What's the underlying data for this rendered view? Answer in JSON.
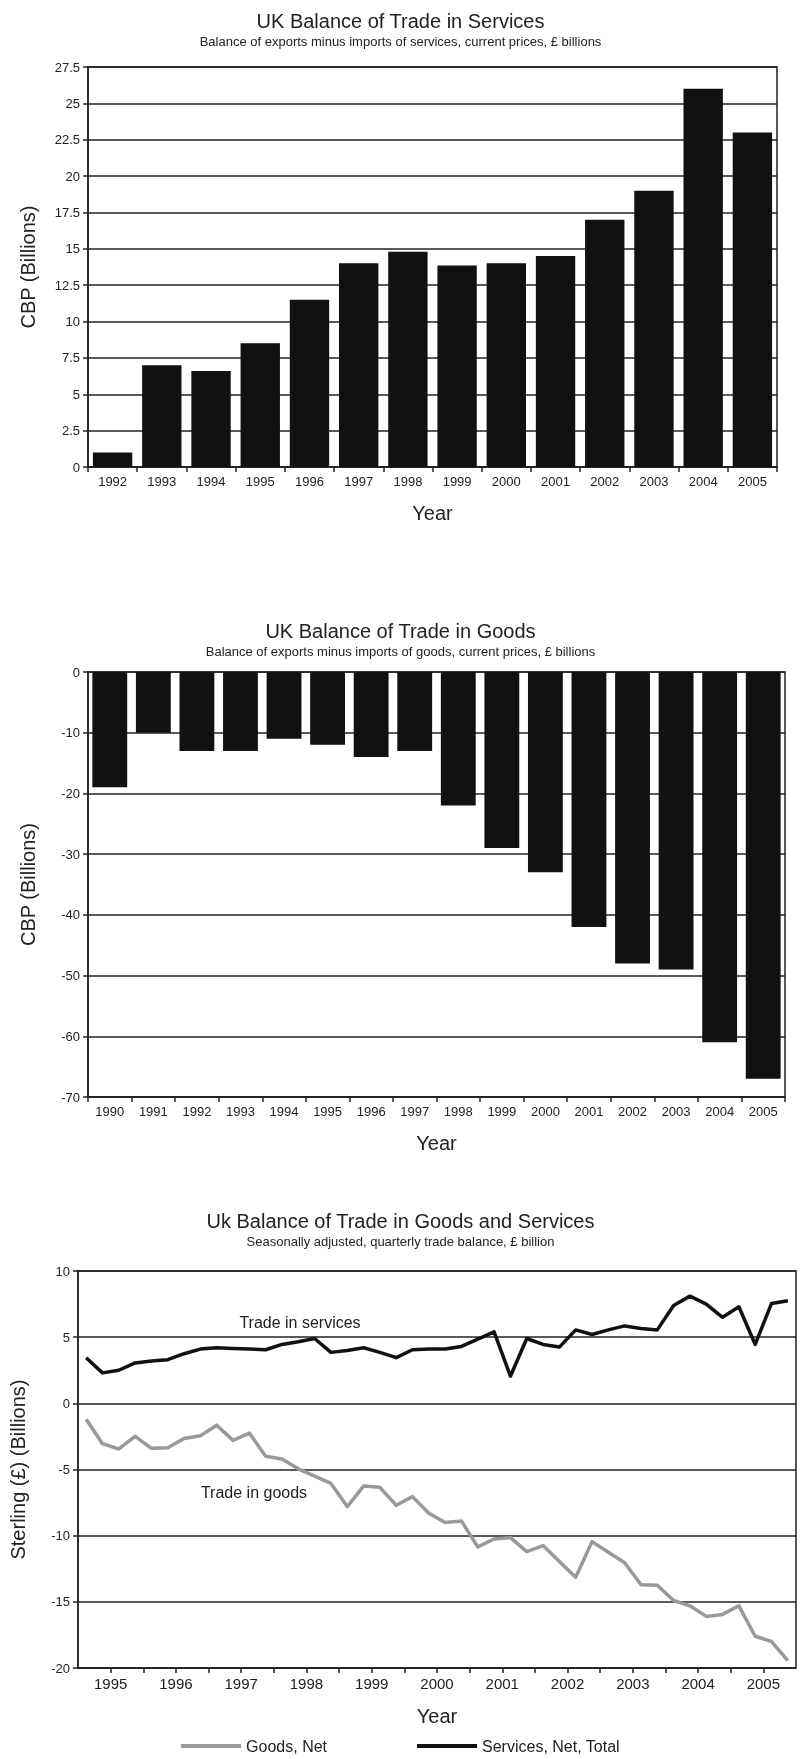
{
  "chart_data": [
    {
      "type": "bar",
      "title": "UK Balance of Trade in Services",
      "subtitle": "Balance of exports minus imports of services, current prices, £ billions",
      "xlabel": "Year",
      "ylabel": "CBP (Billions)",
      "categories": [
        "1992",
        "1993",
        "1994",
        "1995",
        "1996",
        "1997",
        "1998",
        "1999",
        "2000",
        "2001",
        "2002",
        "2003",
        "2004",
        "2005"
      ],
      "values": [
        1,
        7,
        6.6,
        8.5,
        11.5,
        14,
        14.8,
        13.85,
        14,
        14.5,
        17,
        19,
        26,
        23
      ],
      "color": "#111111",
      "ylim": [
        0,
        27.5
      ],
      "yticks": [
        0,
        2.5,
        5,
        7.5,
        10,
        12.5,
        15,
        17.5,
        20,
        22.5,
        25,
        27.5
      ],
      "grid": "y"
    },
    {
      "type": "bar",
      "title": "UK Balance of Trade in Goods",
      "subtitle": "Balance of exports minus imports of goods, current prices, £ billions",
      "xlabel": "Year",
      "ylabel": "CBP (Billions)",
      "categories": [
        "1990",
        "1991",
        "1992",
        "1993",
        "1994",
        "1995",
        "1996",
        "1997",
        "1998",
        "1999",
        "2000",
        "2001",
        "2002",
        "2003",
        "2004",
        "2005"
      ],
      "values": [
        -19,
        -10,
        -13,
        -13,
        -11,
        -12,
        -14,
        -13,
        -22,
        -29,
        -33,
        -42,
        -48,
        -49,
        -61,
        -67
      ],
      "color": "#111111",
      "ylim": [
        -70,
        0
      ],
      "yticks": [
        -70,
        -60,
        -50,
        -40,
        -30,
        -20,
        -10,
        0
      ],
      "grid": "y"
    },
    {
      "type": "line",
      "title": "Uk Balance of Trade in Goods and Services",
      "subtitle": "Seasonally adjusted, quarterly trade balance, £ billion",
      "xlabel": "Year",
      "ylabel": "Sterling (£) (Billions)",
      "x": [
        1995.125,
        1995.375,
        1995.625,
        1995.875,
        1996.125,
        1996.375,
        1996.625,
        1996.875,
        1997.125,
        1997.375,
        1997.625,
        1997.875,
        1998.125,
        1998.375,
        1998.625,
        1998.875,
        1999.125,
        1999.375,
        1999.625,
        1999.875,
        2000.125,
        2000.375,
        2000.625,
        2000.875,
        2001.125,
        2001.375,
        2001.625,
        2001.875,
        2002.125,
        2002.375,
        2002.625,
        2002.875,
        2003.125,
        2003.375,
        2003.625,
        2003.875,
        2004.125,
        2004.375,
        2004.625,
        2004.875,
        2005.125,
        2005.375,
        2005.625,
        2005.875
      ],
      "series": [
        {
          "name": "Goods, Net",
          "color": "#999999",
          "values": [
            -1.2,
            -3.05,
            -3.45,
            -2.5,
            -3.4,
            -3.35,
            -2.65,
            -2.45,
            -1.65,
            -2.8,
            -2.25,
            -4.0,
            -4.2,
            -4.95,
            -5.5,
            -6.05,
            -7.8,
            -6.25,
            -6.35,
            -7.7,
            -7.05,
            -8.3,
            -9.0,
            -8.9,
            -10.85,
            -10.25,
            -10.15,
            -11.2,
            -10.75,
            -11.95,
            -13.15,
            -10.45,
            -11.25,
            -12.05,
            -13.7,
            -13.75,
            -14.9,
            -15.3,
            -16.1,
            -15.95,
            -15.3,
            -17.6,
            -18.0,
            -19.45
          ]
        },
        {
          "name": "Services, Net, Total",
          "color": "#111111",
          "values": [
            3.45,
            2.3,
            2.5,
            3.05,
            3.2,
            3.3,
            3.75,
            4.1,
            4.2,
            4.15,
            4.1,
            4.05,
            4.45,
            4.65,
            4.9,
            3.85,
            4.0,
            4.2,
            3.85,
            3.45,
            4.05,
            4.1,
            4.1,
            4.3,
            4.85,
            5.4,
            2.05,
            4.9,
            4.45,
            4.25,
            5.55,
            5.2,
            5.55,
            5.85,
            5.65,
            5.55,
            7.4,
            8.1,
            7.5,
            6.5,
            7.3,
            4.45,
            7.55,
            7.75
          ]
        }
      ],
      "xlim": [
        1995,
        2006
      ],
      "xticks": [
        {
          "value": 1995.5,
          "label": "1995"
        },
        {
          "value": 1996,
          "label": null
        },
        {
          "value": 1996.5,
          "label": "1996"
        },
        {
          "value": 1997,
          "label": null
        },
        {
          "value": 1997.5,
          "label": "1997"
        },
        {
          "value": 1998,
          "label": null
        },
        {
          "value": 1998.5,
          "label": "1998"
        },
        {
          "value": 1999,
          "label": null
        },
        {
          "value": 1999.5,
          "label": "1999"
        },
        {
          "value": 2000,
          "label": null
        },
        {
          "value": 2000.5,
          "label": "2000"
        },
        {
          "value": 2001,
          "label": null
        },
        {
          "value": 2001.5,
          "label": "2001"
        },
        {
          "value": 2002,
          "label": null
        },
        {
          "value": 2002.5,
          "label": "2002"
        },
        {
          "value": 2003,
          "label": null
        },
        {
          "value": 2003.5,
          "label": "2003"
        },
        {
          "value": 2004,
          "label": null
        },
        {
          "value": 2004.5,
          "label": "2004"
        },
        {
          "value": 2005,
          "label": null
        },
        {
          "value": 2005.5,
          "label": "2005"
        }
      ],
      "ylim": [
        -20,
        10
      ],
      "yticks": [
        -20,
        -15,
        -10,
        -5,
        0,
        5,
        10
      ],
      "grid": "y",
      "marker": "none",
      "legend": "bottom",
      "annotations": [
        "Trade in services",
        "Trade in goods"
      ]
    }
  ]
}
